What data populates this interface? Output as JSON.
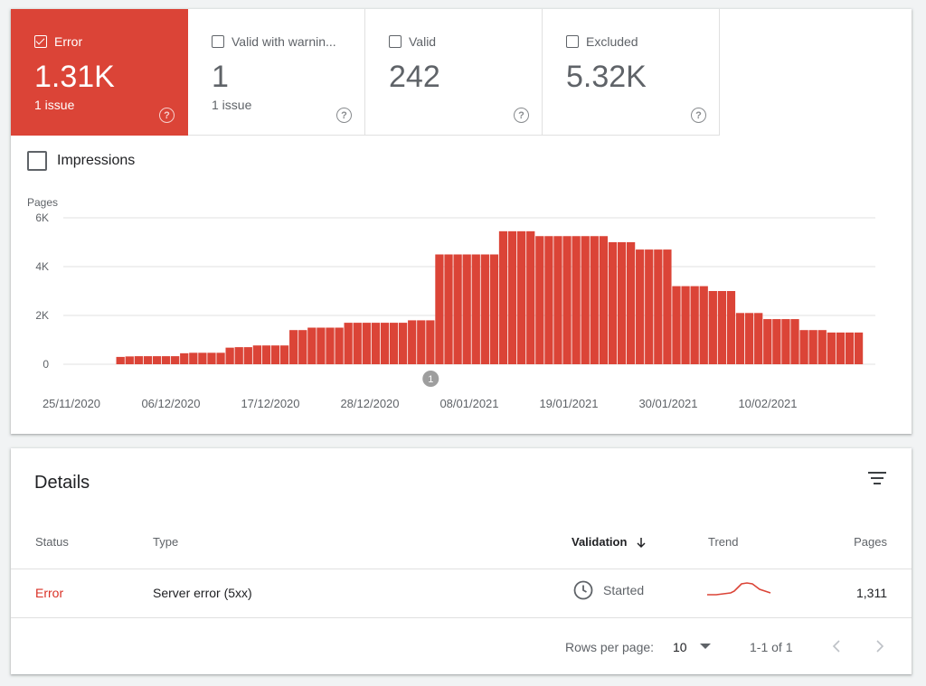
{
  "tiles": [
    {
      "label": "Error",
      "value": "1.31K",
      "sub": "1 issue",
      "active": true
    },
    {
      "label": "Valid with warnin...",
      "value": "1",
      "sub": "1 issue",
      "active": false
    },
    {
      "label": "Valid",
      "value": "242",
      "sub": "",
      "active": false
    },
    {
      "label": "Excluded",
      "value": "5.32K",
      "sub": "",
      "active": false
    }
  ],
  "impressions_label": "Impressions",
  "colors": {
    "error": "#db4437",
    "grid": "#e0e0e0",
    "text_secondary": "#5f6368"
  },
  "chart_data": {
    "type": "bar",
    "ylabel": "Pages",
    "ylim": [
      0,
      6000
    ],
    "yticks": [
      0,
      2000,
      4000,
      6000
    ],
    "ytick_labels": [
      "0",
      "2K",
      "4K",
      "6K"
    ],
    "x_labels": [
      "25/11/2020",
      "06/12/2020",
      "17/12/2020",
      "28/12/2020",
      "08/01/2021",
      "19/01/2021",
      "30/01/2021",
      "10/02/2021"
    ],
    "annotation": "1",
    "annotation_index": 41,
    "values": [
      0,
      0,
      0,
      0,
      0,
      0,
      0,
      300,
      320,
      330,
      330,
      330,
      330,
      330,
      450,
      470,
      470,
      470,
      470,
      680,
      700,
      700,
      770,
      770,
      770,
      770,
      1400,
      1400,
      1500,
      1500,
      1500,
      1500,
      1700,
      1700,
      1700,
      1700,
      1700,
      1700,
      1700,
      1800,
      1800,
      1800,
      4500,
      4500,
      4500,
      4500,
      4500,
      4500,
      4500,
      5450,
      5450,
      5450,
      5450,
      5250,
      5250,
      5250,
      5250,
      5250,
      5250,
      5250,
      5250,
      5000,
      5000,
      5000,
      4700,
      4700,
      4700,
      4700,
      3200,
      3200,
      3200,
      3200,
      3000,
      3000,
      3000,
      2100,
      2100,
      2100,
      1850,
      1850,
      1850,
      1850,
      1400,
      1400,
      1400,
      1300,
      1300,
      1300,
      1300
    ]
  },
  "details": {
    "title": "Details",
    "columns": {
      "status": "Status",
      "type": "Type",
      "validation": "Validation",
      "trend": "Trend",
      "pages": "Pages"
    },
    "row": {
      "status": "Error",
      "type": "Server error (5xx)",
      "validation": "Started",
      "pages": "1,311"
    },
    "footer": {
      "rows_per_page_label": "Rows per page:",
      "rows_per_page_value": "10",
      "range": "1-1 of 1"
    }
  }
}
